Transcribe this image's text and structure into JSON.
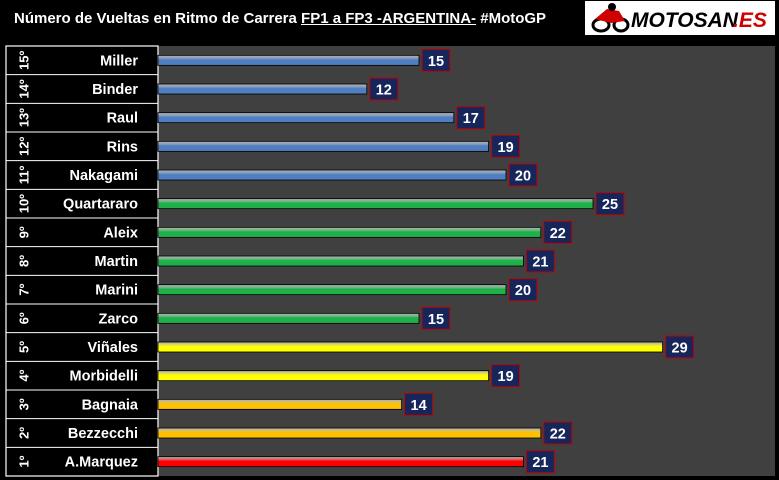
{
  "title": {
    "part1": "Número de Vueltas en Ritmo de Carrera ",
    "part2": "FP1 a FP3 -ARGENTINA-",
    "part3": " #MotoGP"
  },
  "logo": {
    "text_main": "MOTOSAN",
    "text_suffix": ".ES",
    "icon": "motorcycle-rider-icon"
  },
  "colors": {
    "plot_bg": "#404040",
    "value_box": "#17265a",
    "value_box_border": "#c00000",
    "blue": "#4f7fc0",
    "green": "#1fb04a",
    "yellow": "#ffff00",
    "orange": "#ffc000",
    "red": "#ff0000"
  },
  "chart_data": {
    "type": "bar",
    "orientation": "horizontal",
    "title": "Número de Vueltas en Ritmo de Carrera FP1 a FP3 -ARGENTINA- #MotoGP",
    "xlim": [
      0,
      30
    ],
    "rows": [
      {
        "rank": "15º",
        "rider": "Miller",
        "value": 15,
        "color": "blue"
      },
      {
        "rank": "14º",
        "rider": "Binder",
        "value": 12,
        "color": "blue"
      },
      {
        "rank": "13º",
        "rider": "Raul",
        "value": 17,
        "color": "blue"
      },
      {
        "rank": "12º",
        "rider": "Rins",
        "value": 19,
        "color": "blue"
      },
      {
        "rank": "11º",
        "rider": "Nakagami",
        "value": 20,
        "color": "blue"
      },
      {
        "rank": "10º",
        "rider": "Quartararo",
        "value": 25,
        "color": "green"
      },
      {
        "rank": "9º",
        "rider": "Aleix",
        "value": 22,
        "color": "green"
      },
      {
        "rank": "8º",
        "rider": "Martin",
        "value": 21,
        "color": "green"
      },
      {
        "rank": "7º",
        "rider": "Marini",
        "value": 20,
        "color": "green"
      },
      {
        "rank": "6º",
        "rider": "Zarco",
        "value": 15,
        "color": "green"
      },
      {
        "rank": "5º",
        "rider": "Viñales",
        "value": 29,
        "color": "yellow"
      },
      {
        "rank": "4º",
        "rider": "Morbidelli",
        "value": 19,
        "color": "yellow"
      },
      {
        "rank": "3º",
        "rider": "Bagnaia",
        "value": 14,
        "color": "orange"
      },
      {
        "rank": "2º",
        "rider": "Bezzecchi",
        "value": 22,
        "color": "orange"
      },
      {
        "rank": "1º",
        "rider": "A.Marquez",
        "value": 21,
        "color": "red"
      }
    ]
  }
}
